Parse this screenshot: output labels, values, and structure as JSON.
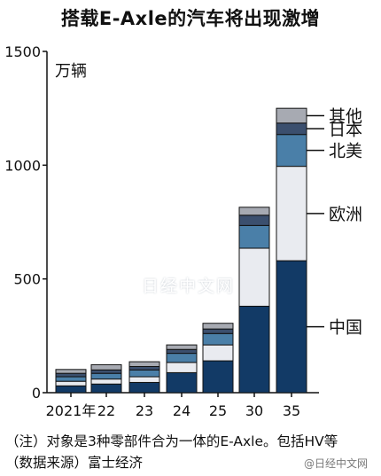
{
  "title": "搭载E-Axle的汽车将出现激增",
  "notes": [
    "（注）对象是3种零部件合为一体的E-Axle。包括HV等",
    "（数据来源）富士经济"
  ],
  "watermarks": [
    "日经中文网",
    "@日经中文网"
  ],
  "colors": {
    "中国": "#123a66",
    "欧洲": "#e9ebf0",
    "北美": "#4a7fa8",
    "日本": "#3b4f6e",
    "其他": "#a7aab2"
  },
  "chart_data": {
    "type": "bar",
    "stacked": true,
    "title": "搭载E-Axle的汽车将出现激增",
    "unit_label": "万辆",
    "categories": [
      "2021年",
      "22",
      "23",
      "24",
      "25",
      "30",
      "35"
    ],
    "ylim": [
      0,
      1500
    ],
    "yticks": [
      0,
      500,
      1000,
      1500
    ],
    "series": [
      {
        "name": "中国",
        "values": [
          30,
          38,
          45,
          88,
          140,
          380,
          580
        ]
      },
      {
        "name": "欧洲",
        "values": [
          20,
          22,
          25,
          45,
          70,
          255,
          415
        ]
      },
      {
        "name": "北美",
        "values": [
          20,
          25,
          30,
          40,
          50,
          100,
          140
        ]
      },
      {
        "name": "日本",
        "values": [
          15,
          15,
          15,
          17,
          20,
          45,
          50
        ]
      },
      {
        "name": "其他",
        "values": [
          17,
          23,
          21,
          20,
          25,
          35,
          65
        ]
      }
    ],
    "legend_placement": "right, beside last bar"
  }
}
